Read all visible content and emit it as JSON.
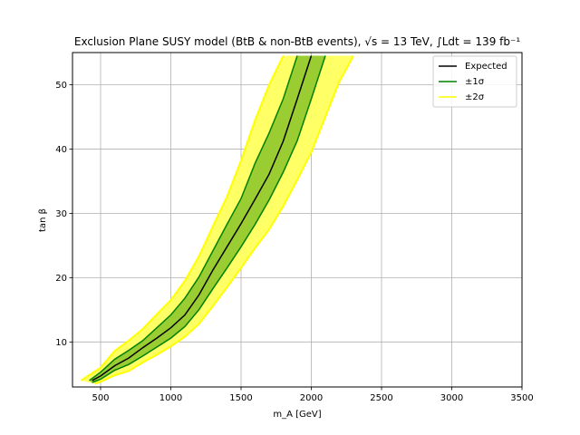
{
  "chart_data": {
    "type": "line",
    "title": "Exclusion Plane SUSY model (BtB & non-BtB events), √s = 13 TeV, ∫Ldt = 139 fb⁻¹",
    "xlabel": "m_A [GeV]",
    "ylabel": "tan β",
    "xlim": [
      300,
      3500
    ],
    "ylim": [
      3,
      55
    ],
    "x_ticks": [
      500,
      1000,
      1500,
      2000,
      2500,
      3000,
      3500
    ],
    "y_ticks": [
      10,
      20,
      30,
      40,
      50
    ],
    "grid": true,
    "legend_position": "top-right",
    "colors": {
      "expected": "#000000",
      "one_sigma_line": "#008000",
      "one_sigma_fill": "#9acd32",
      "two_sigma_line": "#ffff00",
      "two_sigma_fill": "#ffff66"
    },
    "series": [
      {
        "name": "Expected",
        "x": [
          440,
          500,
          600,
          700,
          800,
          900,
          1000,
          1100,
          1200,
          1300,
          1400,
          1500,
          1600,
          1700,
          1800,
          1900,
          2000
        ],
        "y": [
          4,
          4.7,
          6.3,
          7.5,
          9.1,
          10.6,
          12.2,
          14.2,
          17.3,
          21.2,
          24.8,
          28.4,
          32.2,
          36.1,
          41.2,
          47.8,
          54.5
        ]
      },
      {
        "name": "±1σ",
        "upper": {
          "x": [
            420,
            500,
            600,
            700,
            800,
            900,
            1000,
            1100,
            1200,
            1300,
            1400,
            1500,
            1600,
            1700,
            1800,
            1900
          ],
          "y": [
            4,
            5.3,
            7.3,
            8.7,
            10.2,
            12.2,
            14.2,
            16.8,
            20.1,
            24.2,
            28.3,
            32.3,
            37.8,
            42.5,
            47.8,
            54.5
          ]
        },
        "lower": {
          "x": [
            440,
            500,
            600,
            700,
            800,
            900,
            1000,
            1100,
            1200,
            1300,
            1400,
            1500,
            1600,
            1700,
            1800,
            1900,
            2000,
            2100
          ],
          "y": [
            3.7,
            4.2,
            5.6,
            6.5,
            7.8,
            9.2,
            10.6,
            12.4,
            15,
            18.3,
            21.5,
            24.8,
            28.3,
            32.1,
            36.4,
            41.3,
            47.8,
            54.5
          ]
        }
      },
      {
        "name": "±2σ",
        "upper": {
          "x": [
            360,
            500,
            600,
            700,
            800,
            900,
            1000,
            1100,
            1200,
            1300,
            1400,
            1500,
            1600,
            1700,
            1800
          ],
          "y": [
            4,
            6,
            8.6,
            10.2,
            12,
            14.3,
            16.5,
            19.5,
            23.3,
            28,
            32.6,
            38.2,
            44.5,
            50,
            54.5
          ]
        },
        "lower": {
          "x": [
            460,
            500,
            600,
            700,
            800,
            900,
            1000,
            1100,
            1200,
            1300,
            1400,
            1500,
            1600,
            1700,
            1800,
            1900,
            2000,
            2100,
            2200,
            2300
          ],
          "y": [
            3.5,
            3.8,
            4.8,
            5.5,
            6.8,
            8,
            9.3,
            10.8,
            12.8,
            15.6,
            18.5,
            21.5,
            24.6,
            27.5,
            31.1,
            35.2,
            39.5,
            45,
            50.5,
            54.5
          ]
        }
      }
    ]
  }
}
